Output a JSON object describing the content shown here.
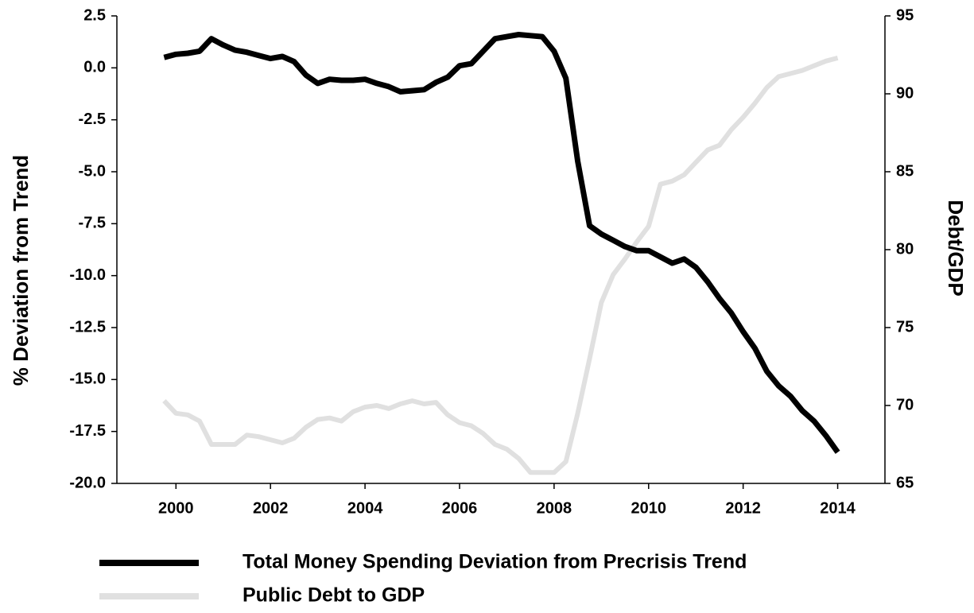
{
  "chart_data": {
    "type": "line",
    "y_label": "% Deviation from Trend",
    "y2_label": "Debt/GDP",
    "x": [
      1999.75,
      2000,
      2000.25,
      2000.5,
      2000.75,
      2001,
      2001.25,
      2001.5,
      2001.75,
      2002,
      2002.25,
      2002.5,
      2002.75,
      2003,
      2003.25,
      2003.5,
      2003.75,
      2004,
      2004.25,
      2004.5,
      2004.75,
      2005,
      2005.25,
      2005.5,
      2005.75,
      2006,
      2006.25,
      2006.5,
      2006.75,
      2007,
      2007.25,
      2007.5,
      2007.75,
      2008,
      2008.25,
      2008.5,
      2008.75,
      2009,
      2009.25,
      2009.5,
      2009.75,
      2010,
      2010.25,
      2010.5,
      2010.75,
      2011,
      2011.25,
      2011.5,
      2011.75,
      2012,
      2012.25,
      2012.5,
      2012.75,
      2013,
      2013.25,
      2013.5,
      2013.75,
      2014
    ],
    "series": [
      {
        "name": "Total Money Spending Deviation from Precrisis Trend",
        "color": "#000000",
        "values": [
          0.5,
          0.65,
          0.7,
          0.8,
          1.4,
          1.1,
          0.85,
          0.75,
          0.6,
          0.45,
          0.55,
          0.3,
          -0.35,
          -0.75,
          -0.55,
          -0.6,
          -0.6,
          -0.55,
          -0.75,
          -0.9,
          -1.15,
          -1.1,
          -1.05,
          -0.7,
          -0.45,
          0.1,
          0.2,
          0.8,
          1.4,
          1.5,
          1.6,
          1.55,
          1.5,
          0.8,
          -0.5,
          -4.5,
          -7.6,
          -8.0,
          -8.3,
          -8.6,
          -8.8,
          -8.8,
          -9.1,
          -9.4,
          -9.2,
          -9.6,
          -10.3,
          -11.1,
          -11.8,
          -12.7,
          -13.5,
          -14.6,
          -15.3,
          -15.8,
          -16.5,
          -17.0,
          -17.7,
          -18.5
        ]
      },
      {
        "name": "Public Debt to GDP",
        "color": "#e0e0e0",
        "axis": "y2",
        "values": [
          70.3,
          69.5,
          69.4,
          69.0,
          67.5,
          67.5,
          67.5,
          68.1,
          68.0,
          67.8,
          67.6,
          67.9,
          68.6,
          69.1,
          69.2,
          69.0,
          69.6,
          69.9,
          70.0,
          69.8,
          70.1,
          70.3,
          70.1,
          70.2,
          69.4,
          68.9,
          68.7,
          68.2,
          67.5,
          67.2,
          66.6,
          65.7,
          65.7,
          65.7,
          66.4,
          69.5,
          73.0,
          76.6,
          78.4,
          79.4,
          80.5,
          81.5,
          84.2,
          84.4,
          84.8,
          85.6,
          86.4,
          86.7,
          87.7,
          88.5,
          89.4,
          90.4,
          91.1,
          91.3,
          91.5,
          91.8,
          92.1,
          92.3
        ]
      }
    ],
    "xlim": [
      1998.75,
      2015.0
    ],
    "xticks": [
      2000,
      2002,
      2004,
      2006,
      2008,
      2010,
      2012,
      2014
    ],
    "ylim": [
      -20,
      2.5
    ],
    "yticks": [
      2.5,
      {
        "value": 0,
        "label": "0.0"
      },
      -2.5,
      {
        "value": -5,
        "label": "-5.0"
      },
      -7.5,
      {
        "value": -10,
        "label": "-10.0"
      },
      -12.5,
      {
        "value": -15,
        "label": "-15.0"
      },
      -17.5,
      {
        "value": -20,
        "label": "-20.0"
      }
    ],
    "y2lim": [
      65,
      95
    ],
    "y2ticks": [
      65,
      70,
      75,
      80,
      85,
      90,
      95
    ],
    "legend": "bottom"
  }
}
